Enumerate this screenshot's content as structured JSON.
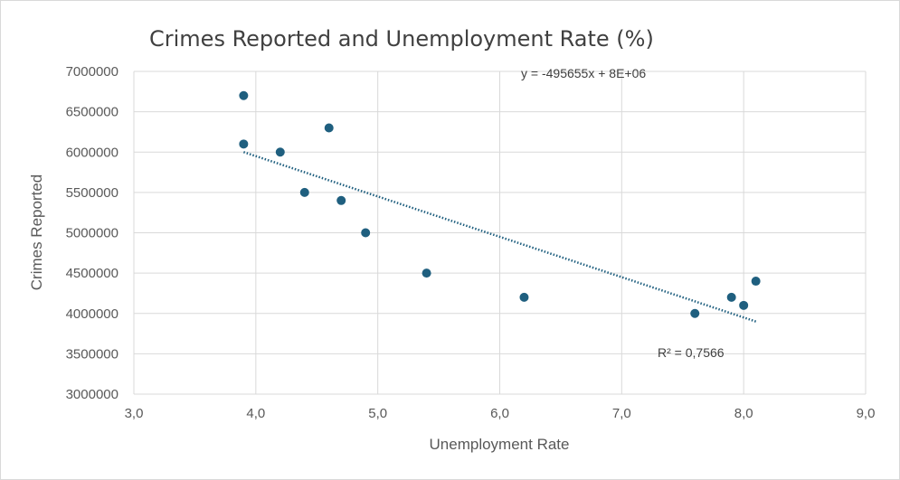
{
  "chart_data": {
    "type": "scatter",
    "title": "Crimes Reported and Unemployment Rate (%)",
    "xlabel": "Unemployment Rate",
    "ylabel": "Crimes Reported",
    "xlim": [
      3.0,
      9.0
    ],
    "ylim": [
      3000000,
      7000000
    ],
    "x_ticks": [
      3.0,
      4.0,
      5.0,
      6.0,
      7.0,
      8.0,
      9.0
    ],
    "x_tick_labels": [
      "3,0",
      "4,0",
      "5,0",
      "6,0",
      "7,0",
      "8,0",
      "9,0"
    ],
    "y_ticks": [
      3000000,
      3500000,
      4000000,
      4500000,
      5000000,
      5500000,
      6000000,
      6500000,
      7000000
    ],
    "y_tick_labels": [
      "3000000",
      "3500000",
      "4000000",
      "4500000",
      "5000000",
      "5500000",
      "6000000",
      "6500000",
      "7000000"
    ],
    "grid": true,
    "legend": "none",
    "marker_color": "#1f5f7f",
    "trendline_color": "#1f5f7f",
    "gridline_color": "#d9d9d9",
    "points": [
      {
        "x": 3.9,
        "y": 6700000
      },
      {
        "x": 3.9,
        "y": 6100000
      },
      {
        "x": 4.2,
        "y": 6000000
      },
      {
        "x": 4.4,
        "y": 5500000
      },
      {
        "x": 4.6,
        "y": 6300000
      },
      {
        "x": 4.7,
        "y": 5400000
      },
      {
        "x": 4.9,
        "y": 5000000
      },
      {
        "x": 5.4,
        "y": 4500000
      },
      {
        "x": 6.2,
        "y": 4200000
      },
      {
        "x": 7.6,
        "y": 4000000
      },
      {
        "x": 7.9,
        "y": 4200000
      },
      {
        "x": 8.0,
        "y": 4100000
      },
      {
        "x": 8.1,
        "y": 4400000
      }
    ],
    "trendline": {
      "type": "linear",
      "x_range": [
        3.9,
        8.1
      ],
      "y_at_start": 6000000,
      "y_at_end": 3900000,
      "equation": "y = -495655x + 8E+06",
      "r_squared_label": "R² = 0,7566"
    }
  }
}
